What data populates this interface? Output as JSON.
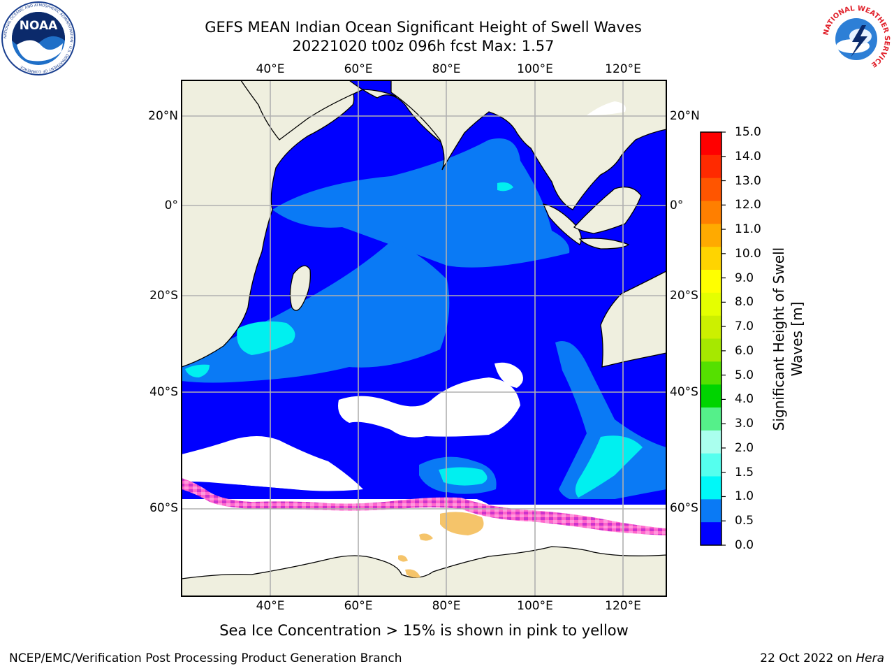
{
  "title_line1": "GEFS MEAN Indian Ocean Significant Height of Swell Waves",
  "title_line2": "20221020 t00z 096h fcst   Max: 1.57",
  "chart_data": {
    "type": "heatmap",
    "variable": "Significant Height of Swell Waves [m]",
    "max_value": 1.57,
    "lon_range": [
      20,
      130
    ],
    "lat_range": [
      -72,
      27
    ],
    "lon_ticks": [
      40,
      60,
      80,
      100,
      120
    ],
    "lat_ticks": [
      20,
      0,
      -20,
      -40,
      -60
    ],
    "grid": true
  },
  "map": {
    "lon_labels": [
      "40°E",
      "60°E",
      "80°E",
      "100°E",
      "120°E"
    ],
    "lat_labels": [
      "20°N",
      "0°",
      "20°S",
      "40°S",
      "60°S"
    ],
    "colors": {
      "land": "#efefdf",
      "ocean_low": "#0000ff",
      "ocean_mid": "#0a7af5",
      "ocean_high": "#00f0f0",
      "sea_ice_low": "#ff66cc",
      "sea_ice_high": "#f5c46a",
      "missing": "#ffffff"
    }
  },
  "colorbar": {
    "label_line1": "Significant Height of Swell",
    "label_line2": "Waves [m]",
    "ticks": [
      "15.0",
      "14.0",
      "13.0",
      "12.0",
      "11.0",
      "10.0",
      "9.0",
      "8.0",
      "7.0",
      "6.0",
      "5.0",
      "4.0",
      "3.0",
      "2.0",
      "1.5",
      "1.0",
      "0.5",
      "0.0"
    ],
    "colors": [
      "#ff0000",
      "#ff2a00",
      "#ff5500",
      "#ff7f00",
      "#ffaa00",
      "#ffd400",
      "#ffff00",
      "#e5ff00",
      "#ccf000",
      "#a6e800",
      "#55e000",
      "#00d400",
      "#55f08a",
      "#aaffee",
      "#55ffee",
      "#00f8f8",
      "#0a7af5",
      "#0000ff"
    ]
  },
  "note": "Sea Ice Concentration > 15% is shown in pink to yellow",
  "footer_left": "NCEP/EMC/Verification Post Processing Product Generation Branch",
  "footer_right_prefix": "22 Oct 2022 on ",
  "footer_right_host": "Hera",
  "logos": {
    "noaa_text": "NOAA",
    "noaa_ring": "NATIONAL OCEANIC AND ATMOSPHERIC ADMINISTRATION · U.S. DEPARTMENT OF COMMERCE",
    "nws_ring": "NATIONAL WEATHER SERVICE"
  }
}
